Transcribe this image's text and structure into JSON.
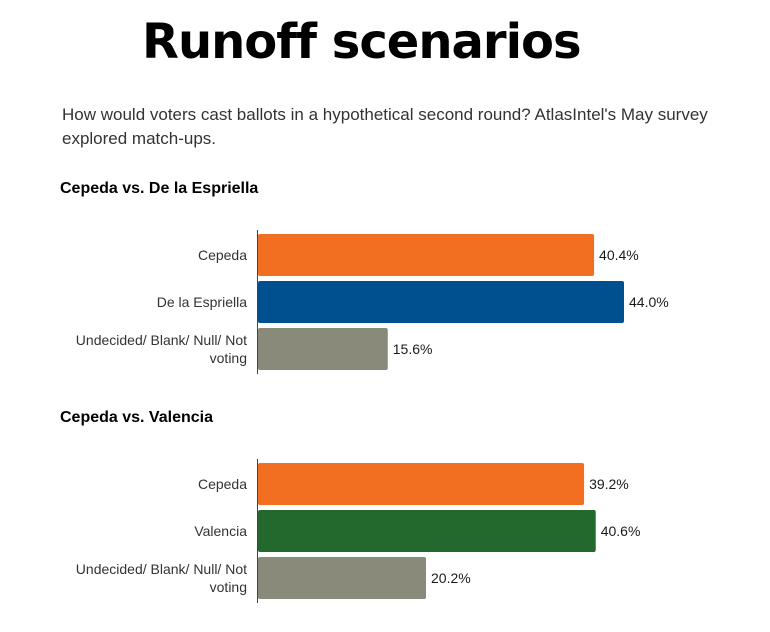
{
  "header": {
    "title": "Runoff scenarios",
    "subtitle": "How would voters cast ballots in a hypothetical second round? AtlasIntel's May survey explored match-ups."
  },
  "chart_data": [
    {
      "type": "bar",
      "orientation": "horizontal",
      "title": "Cepeda vs. De la Espriella",
      "categories": [
        "Cepeda",
        "De la Espriella",
        "Undecided/ Blank/ Null/ Not voting"
      ],
      "values": [
        40.4,
        44.0,
        15.6
      ],
      "value_labels": [
        "40.4%",
        "44.0%",
        "15.6%"
      ],
      "colors": [
        "#f26f21",
        "#00508f",
        "#898a79"
      ],
      "xlim": [
        0,
        44
      ]
    },
    {
      "type": "bar",
      "orientation": "horizontal",
      "title": "Cepeda vs. Valencia",
      "categories": [
        "Cepeda",
        "Valencia",
        "Undecided/ Blank/ Null/ Not voting"
      ],
      "values": [
        39.2,
        40.6,
        20.2
      ],
      "value_labels": [
        "39.2%",
        "40.6%",
        "20.2%"
      ],
      "colors": [
        "#f26f21",
        "#23682c",
        "#898a79"
      ],
      "xlim": [
        0,
        44
      ]
    }
  ]
}
